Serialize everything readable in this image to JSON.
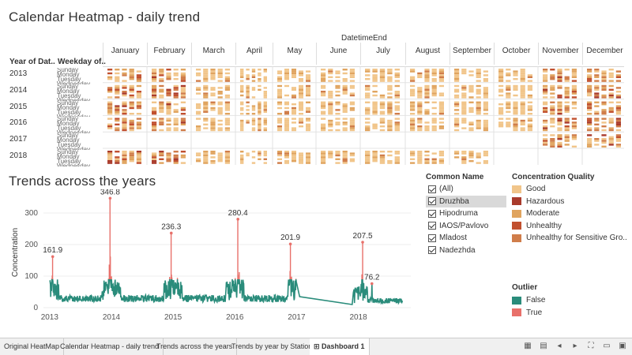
{
  "titles": {
    "calendar": "Calendar Heatmap - daily trend",
    "trends": "Trends across the years"
  },
  "heatmap": {
    "header": "DatetimeEnd",
    "col_year": "Year of Dat..",
    "col_weekday": "Weekday of..",
    "months": [
      "January",
      "February",
      "March",
      "April",
      "May",
      "June",
      "July",
      "August",
      "September",
      "October",
      "November",
      "December"
    ],
    "years": [
      "2013",
      "2014",
      "2015",
      "2016",
      "2017",
      "2018"
    ],
    "weekday_labels": [
      "Sunday",
      "Monday",
      "Tuesday",
      "Wednesday",
      "Thursday",
      "Friday",
      "Saturday"
    ]
  },
  "chart_data": {
    "type": "line",
    "title": "Trends across the years",
    "ylabel": "Concentration",
    "x_ticks": [
      "2013",
      "2014",
      "2015",
      "2016",
      "2017",
      "2018"
    ],
    "y_ticks": [
      0,
      100,
      200,
      300
    ],
    "ylim": [
      0,
      350
    ],
    "series": [
      {
        "name": "False",
        "color": "#2a8c7b"
      },
      {
        "name": "True",
        "color": "#e8706a"
      }
    ],
    "annotations": [
      {
        "label": "161.9",
        "x": 2013.05,
        "y": 161.9
      },
      {
        "label": "346.8",
        "x": 2013.98,
        "y": 346.8
      },
      {
        "label": "236.3",
        "x": 2014.97,
        "y": 236.3
      },
      {
        "label": "280.4",
        "x": 2016.05,
        "y": 280.4
      },
      {
        "label": "201.9",
        "x": 2016.9,
        "y": 201.9
      },
      {
        "label": "207.5",
        "x": 2018.07,
        "y": 207.5
      },
      {
        "label": "76.2",
        "x": 2018.22,
        "y": 76.2
      }
    ]
  },
  "filter": {
    "title": "Common Name",
    "items": [
      "(All)",
      "Druzhba",
      "Hipodruma",
      "IAOS/Pavlovo",
      "Mladost",
      "Nadezhda"
    ]
  },
  "concentration_quality": {
    "title": "Concentration Quality",
    "items": [
      {
        "label": "Good",
        "color": "#f1c58a"
      },
      {
        "label": "Hazardous",
        "color": "#a93a2b"
      },
      {
        "label": "Moderate",
        "color": "#e0a45f"
      },
      {
        "label": "Unhealthy",
        "color": "#c1502f"
      },
      {
        "label": "Unhealthy for Sensitive Gro..",
        "color": "#d07d4a"
      }
    ]
  },
  "outlier": {
    "title": "Outlier",
    "items": [
      {
        "label": "False",
        "color": "#2a8c7b"
      },
      {
        "label": "True",
        "color": "#e8706a"
      }
    ]
  },
  "tabs": [
    "Original HeatMap",
    "Calendar Heatmap - daily trend",
    "Trends across the years",
    "Trends by year by Station",
    "Dashboard 1"
  ],
  "tab_icons": [
    "grid-icon",
    "grid-alt-icon",
    "prev-icon",
    "next-icon",
    "fullscreen-icon",
    "fit-icon",
    "present-icon"
  ]
}
